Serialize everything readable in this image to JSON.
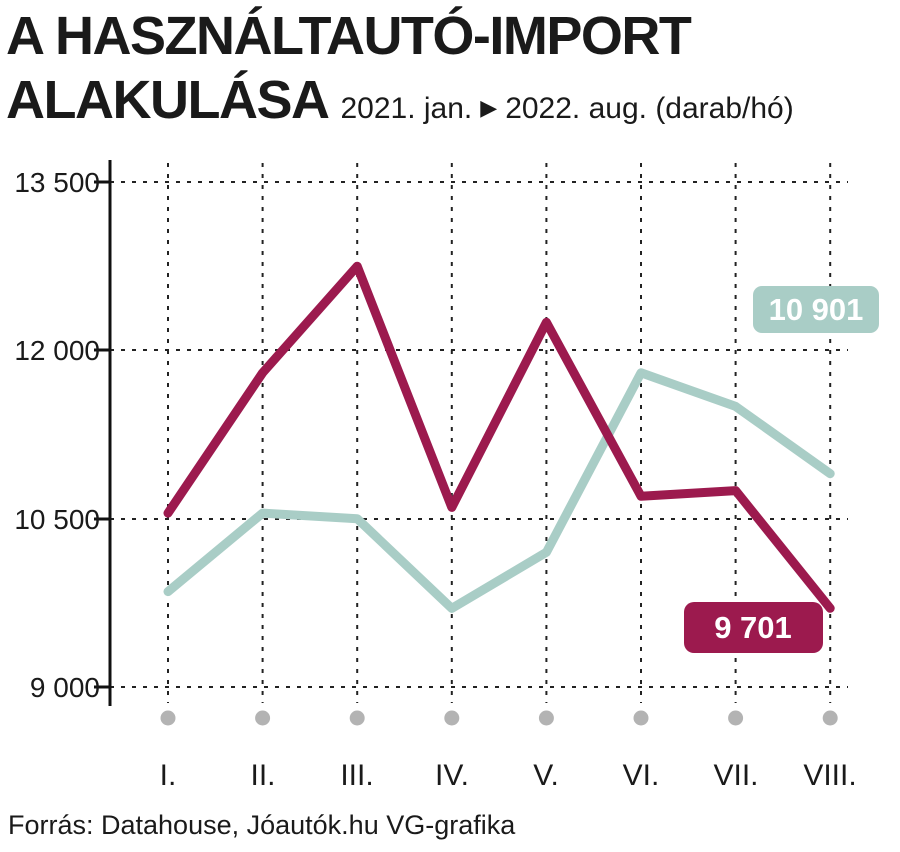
{
  "header": {
    "title_line1": "A HASZNÁLTAUTÓ-IMPORT",
    "title_line2": "ALAKULÁSA",
    "subtitle_start": "2021. jan.",
    "subtitle_end": "2022. aug. (darab/hó)",
    "arrow_icon": "▶"
  },
  "chart_data": {
    "type": "line",
    "title": "A használtautó-import alakulása",
    "period": "2021. jan. – 2022. aug.",
    "unit": "darab/hó",
    "categories": [
      "I.",
      "II.",
      "III.",
      "IV.",
      "V.",
      "VI.",
      "VII.",
      "VIII."
    ],
    "series": [
      {
        "name": "maroon-line",
        "color": "#9c1a4e",
        "values": [
          10550,
          11800,
          12750,
          10600,
          12250,
          10700,
          10750,
          9701
        ],
        "end_label": "9 701"
      },
      {
        "name": "teal-line",
        "color": "#a9cdc6",
        "values": [
          9850,
          10550,
          10500,
          9700,
          10200,
          11800,
          11500,
          10901
        ],
        "end_label": "10 901"
      }
    ],
    "ylim": [
      9000,
      13500
    ],
    "ytick_values": [
      13500,
      12000,
      10500,
      9000
    ],
    "ytick_labels": [
      "13 500",
      "12 000",
      "10 500",
      "9 000"
    ],
    "grid": "dashed-horizontal-and-vertical",
    "legend": "none"
  },
  "footer": {
    "source": "Forrás: Datahouse, Jóautók.hu VG-grafika"
  }
}
